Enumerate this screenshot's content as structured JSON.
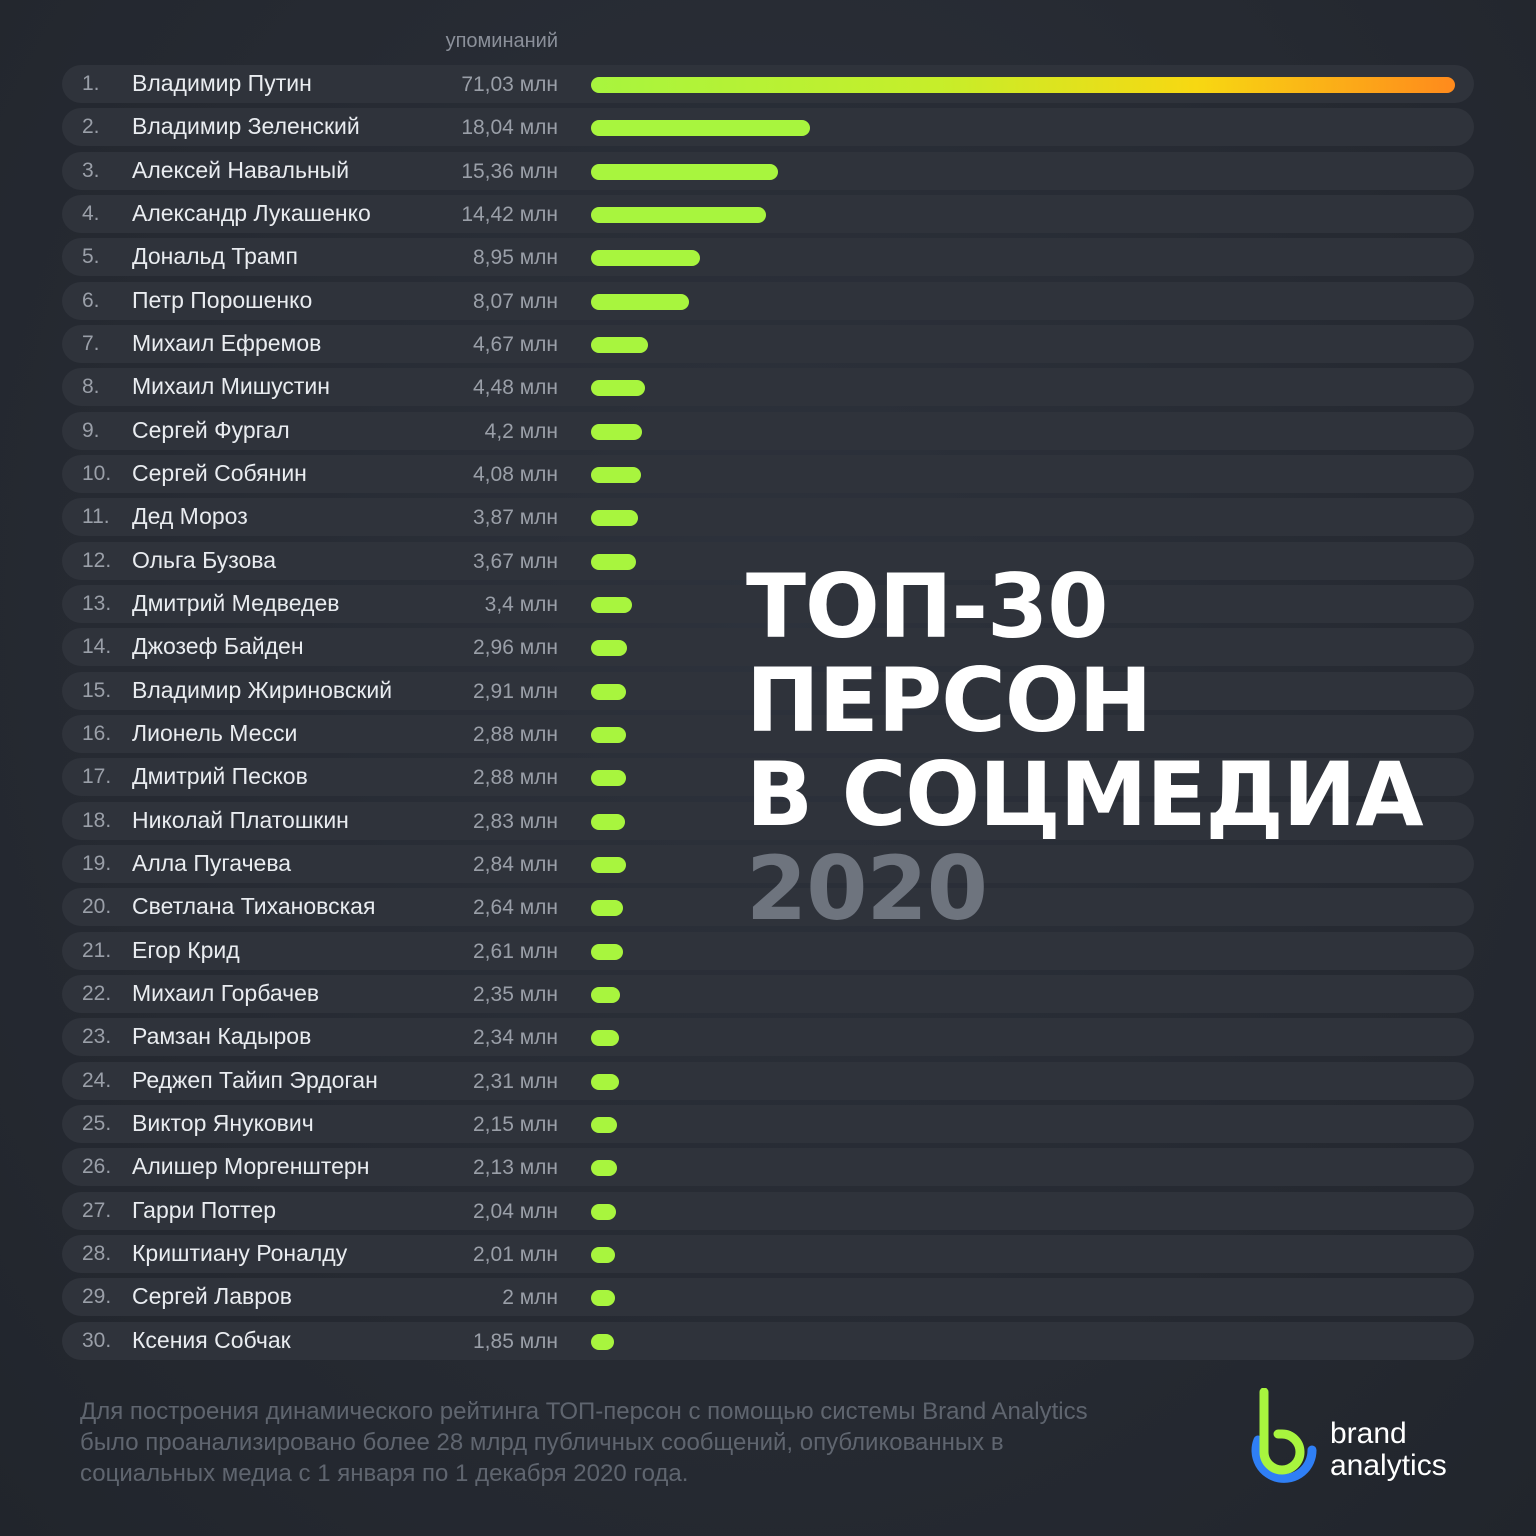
{
  "chart_data": {
    "type": "bar",
    "orientation": "horizontal",
    "title_lines": [
      "ТОП-30",
      "ПЕРСОН",
      "В СОЦМЕДИА"
    ],
    "year": "2020",
    "value_header": "упоминаний",
    "unit": "млн",
    "rows": [
      {
        "rank": "1.",
        "name": "Владимир Путин",
        "value": 71.03,
        "label": "71,03 млн"
      },
      {
        "rank": "2.",
        "name": "Владимир Зеленский",
        "value": 18.04,
        "label": "18,04 млн"
      },
      {
        "rank": "3.",
        "name": "Алексей Навальный",
        "value": 15.36,
        "label": "15,36 млн"
      },
      {
        "rank": "4.",
        "name": "Александр Лукашенко",
        "value": 14.42,
        "label": "14,42 млн"
      },
      {
        "rank": "5.",
        "name": "Дональд Трамп",
        "value": 8.95,
        "label": "8,95 млн"
      },
      {
        "rank": "6.",
        "name": "Петр Порошенко",
        "value": 8.07,
        "label": "8,07 млн"
      },
      {
        "rank": "7.",
        "name": "Михаил Ефремов",
        "value": 4.67,
        "label": "4,67 млн"
      },
      {
        "rank": "8.",
        "name": "Михаил Мишустин",
        "value": 4.48,
        "label": "4,48 млн"
      },
      {
        "rank": "9.",
        "name": "Сергей Фургал",
        "value": 4.2,
        "label": "4,2 млн"
      },
      {
        "rank": "10.",
        "name": "Сергей Собянин",
        "value": 4.08,
        "label": "4,08 млн"
      },
      {
        "rank": "11.",
        "name": "Дед Мороз",
        "value": 3.87,
        "label": "3,87 млн"
      },
      {
        "rank": "12.",
        "name": "Ольга Бузова",
        "value": 3.67,
        "label": "3,67 млн"
      },
      {
        "rank": "13.",
        "name": "Дмитрий Медведев",
        "value": 3.4,
        "label": "3,4 млн"
      },
      {
        "rank": "14.",
        "name": "Джозеф Байден",
        "value": 2.96,
        "label": "2,96 млн"
      },
      {
        "rank": "15.",
        "name": "Владимир Жириновский",
        "value": 2.91,
        "label": "2,91 млн"
      },
      {
        "rank": "16.",
        "name": "Лионель Месси",
        "value": 2.88,
        "label": "2,88 млн"
      },
      {
        "rank": "17.",
        "name": "Дмитрий Песков",
        "value": 2.88,
        "label": "2,88 млн"
      },
      {
        "rank": "18.",
        "name": "Николай Платошкин",
        "value": 2.83,
        "label": "2,83 млн"
      },
      {
        "rank": "19.",
        "name": "Алла Пугачева",
        "value": 2.84,
        "label": "2,84 млн"
      },
      {
        "rank": "20.",
        "name": "Светлана Тихановская",
        "value": 2.64,
        "label": "2,64 млн"
      },
      {
        "rank": "21.",
        "name": "Егор Крид",
        "value": 2.61,
        "label": "2,61 млн"
      },
      {
        "rank": "22.",
        "name": "Михаил Горбачев",
        "value": 2.35,
        "label": "2,35 млн"
      },
      {
        "rank": "23.",
        "name": "Рамзан Кадыров",
        "value": 2.34,
        "label": "2,34 млн"
      },
      {
        "rank": "24.",
        "name": "Реджеп Тайип Эрдоган",
        "value": 2.31,
        "label": "2,31 млн"
      },
      {
        "rank": "25.",
        "name": "Виктор Янукович",
        "value": 2.15,
        "label": "2,15 млн"
      },
      {
        "rank": "26.",
        "name": "Алишер Моргенштерн",
        "value": 2.13,
        "label": "2,13 млн"
      },
      {
        "rank": "27.",
        "name": "Гарри Поттер",
        "value": 2.04,
        "label": "2,04 млн"
      },
      {
        "rank": "28.",
        "name": "Криштиану Роналду",
        "value": 2.01,
        "label": "2,01 млн"
      },
      {
        "rank": "29.",
        "name": "Сергей Лавров",
        "value": 2,
        "label": "2 млн"
      },
      {
        "rank": "30.",
        "name": "Ксения Собчак",
        "value": 1.85,
        "label": "1,85 млн"
      }
    ],
    "colors": {
      "bar": "#a8f53e",
      "top_bar_gradient": [
        "#a8f53e",
        "#f7d812",
        "#ff8a1c"
      ],
      "row_background": "#2f333b",
      "background": "#262a32"
    }
  },
  "footnote": "Для построения динамического рейтинга ТОП-персон с помощью системы Brand Analytics было проанализировано более 28 млрд публичных сообщений, опубликованных в социальных медиа с 1 января по 1 декабря 2020 года.",
  "logo": {
    "line1": "brand",
    "line2": "analytics",
    "colors": {
      "green": "#a8f53e",
      "blue": "#2f7ff5"
    }
  }
}
